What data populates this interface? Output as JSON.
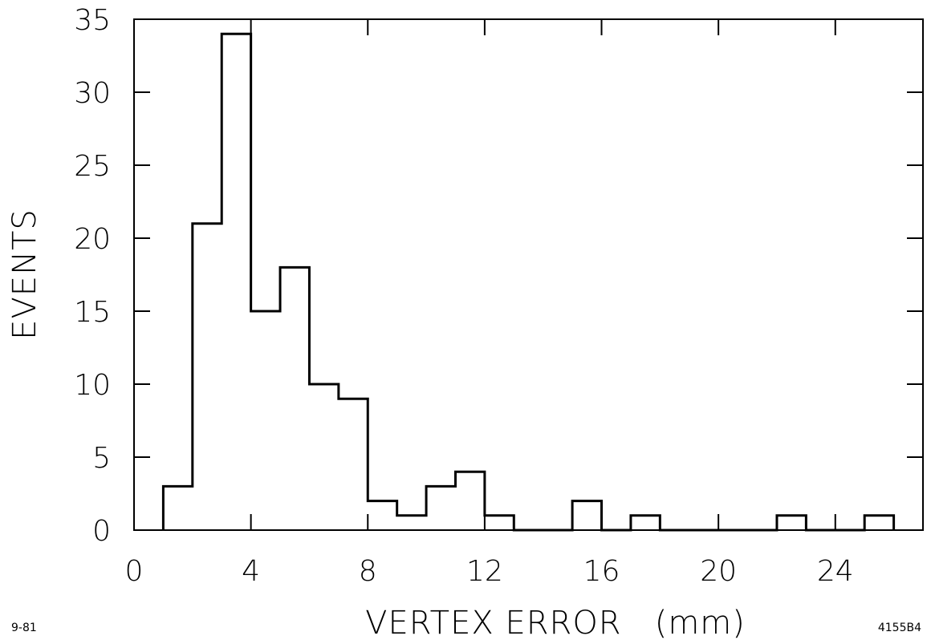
{
  "chart_data": {
    "type": "bar",
    "subtype": "histogram",
    "title": "",
    "xlabel": "VERTEX ERROR   (mm)",
    "ylabel": "EVENTS",
    "xlim": [
      0,
      27
    ],
    "ylim": [
      0,
      35
    ],
    "xticks": [
      0,
      4,
      8,
      12,
      16,
      20,
      24
    ],
    "yticks": [
      0,
      5,
      10,
      15,
      20,
      25,
      30,
      35
    ],
    "bin_width": 1,
    "bins": [
      {
        "x0": 1,
        "x1": 2,
        "count": 3
      },
      {
        "x0": 2,
        "x1": 3,
        "count": 21
      },
      {
        "x0": 3,
        "x1": 4,
        "count": 34
      },
      {
        "x0": 4,
        "x1": 5,
        "count": 15
      },
      {
        "x0": 5,
        "x1": 6,
        "count": 18
      },
      {
        "x0": 6,
        "x1": 7,
        "count": 10
      },
      {
        "x0": 7,
        "x1": 8,
        "count": 9
      },
      {
        "x0": 8,
        "x1": 9,
        "count": 2
      },
      {
        "x0": 9,
        "x1": 10,
        "count": 1
      },
      {
        "x0": 10,
        "x1": 11,
        "count": 3
      },
      {
        "x0": 11,
        "x1": 12,
        "count": 4
      },
      {
        "x0": 12,
        "x1": 13,
        "count": 1
      },
      {
        "x0": 13,
        "x1": 14,
        "count": 0
      },
      {
        "x0": 14,
        "x1": 15,
        "count": 0
      },
      {
        "x0": 15,
        "x1": 16,
        "count": 2
      },
      {
        "x0": 16,
        "x1": 17,
        "count": 0
      },
      {
        "x0": 17,
        "x1": 18,
        "count": 1
      },
      {
        "x0": 18,
        "x1": 19,
        "count": 0
      },
      {
        "x0": 19,
        "x1": 20,
        "count": 0
      },
      {
        "x0": 20,
        "x1": 21,
        "count": 0
      },
      {
        "x0": 21,
        "x1": 22,
        "count": 0
      },
      {
        "x0": 22,
        "x1": 23,
        "count": 1
      },
      {
        "x0": 23,
        "x1": 24,
        "count": 0
      },
      {
        "x0": 24,
        "x1": 25,
        "count": 0
      },
      {
        "x0": 25,
        "x1": 26,
        "count": 1
      }
    ],
    "grid": false,
    "legend": null,
    "line_color": "#000000"
  },
  "footer": {
    "left_note": "9-81",
    "right_note": "4155B4"
  }
}
